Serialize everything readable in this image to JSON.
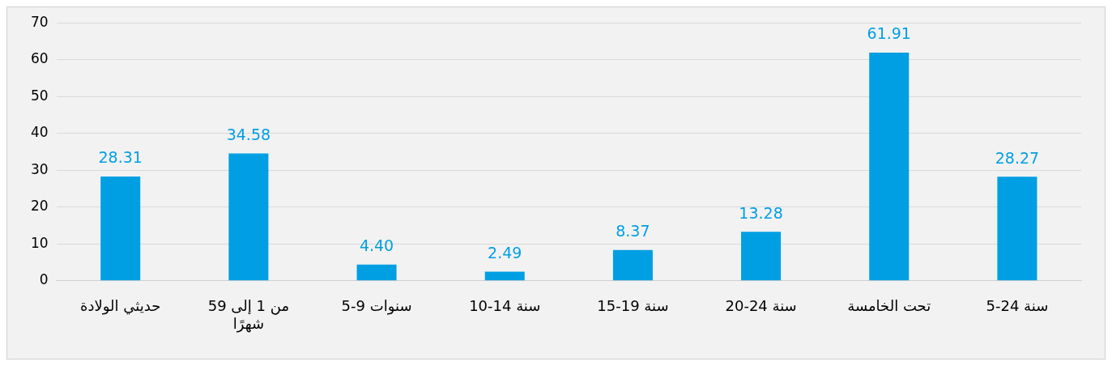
{
  "chart_data": {
    "type": "bar",
    "categories": [
      "حديثي الولادة",
      "من 1 إلى 59 شهرًا",
      "5-9 سنوات",
      "10-14 سنة",
      "15-19 سنة",
      "20-24 سنة",
      "تحت الخامسة",
      "5-24 سنة"
    ],
    "values": [
      28.31,
      34.58,
      4.4,
      2.49,
      8.37,
      13.28,
      61.91,
      28.27
    ],
    "value_labels": [
      "28.31",
      "34.58",
      "4.40",
      "2.49",
      "8.37",
      "13.28",
      "61.91",
      "28.27"
    ],
    "color": "#009fe3",
    "ylim": [
      0,
      70
    ],
    "yticks": [
      0,
      10,
      20,
      30,
      40,
      50,
      60,
      70
    ],
    "grid": "y",
    "legend": false
  }
}
